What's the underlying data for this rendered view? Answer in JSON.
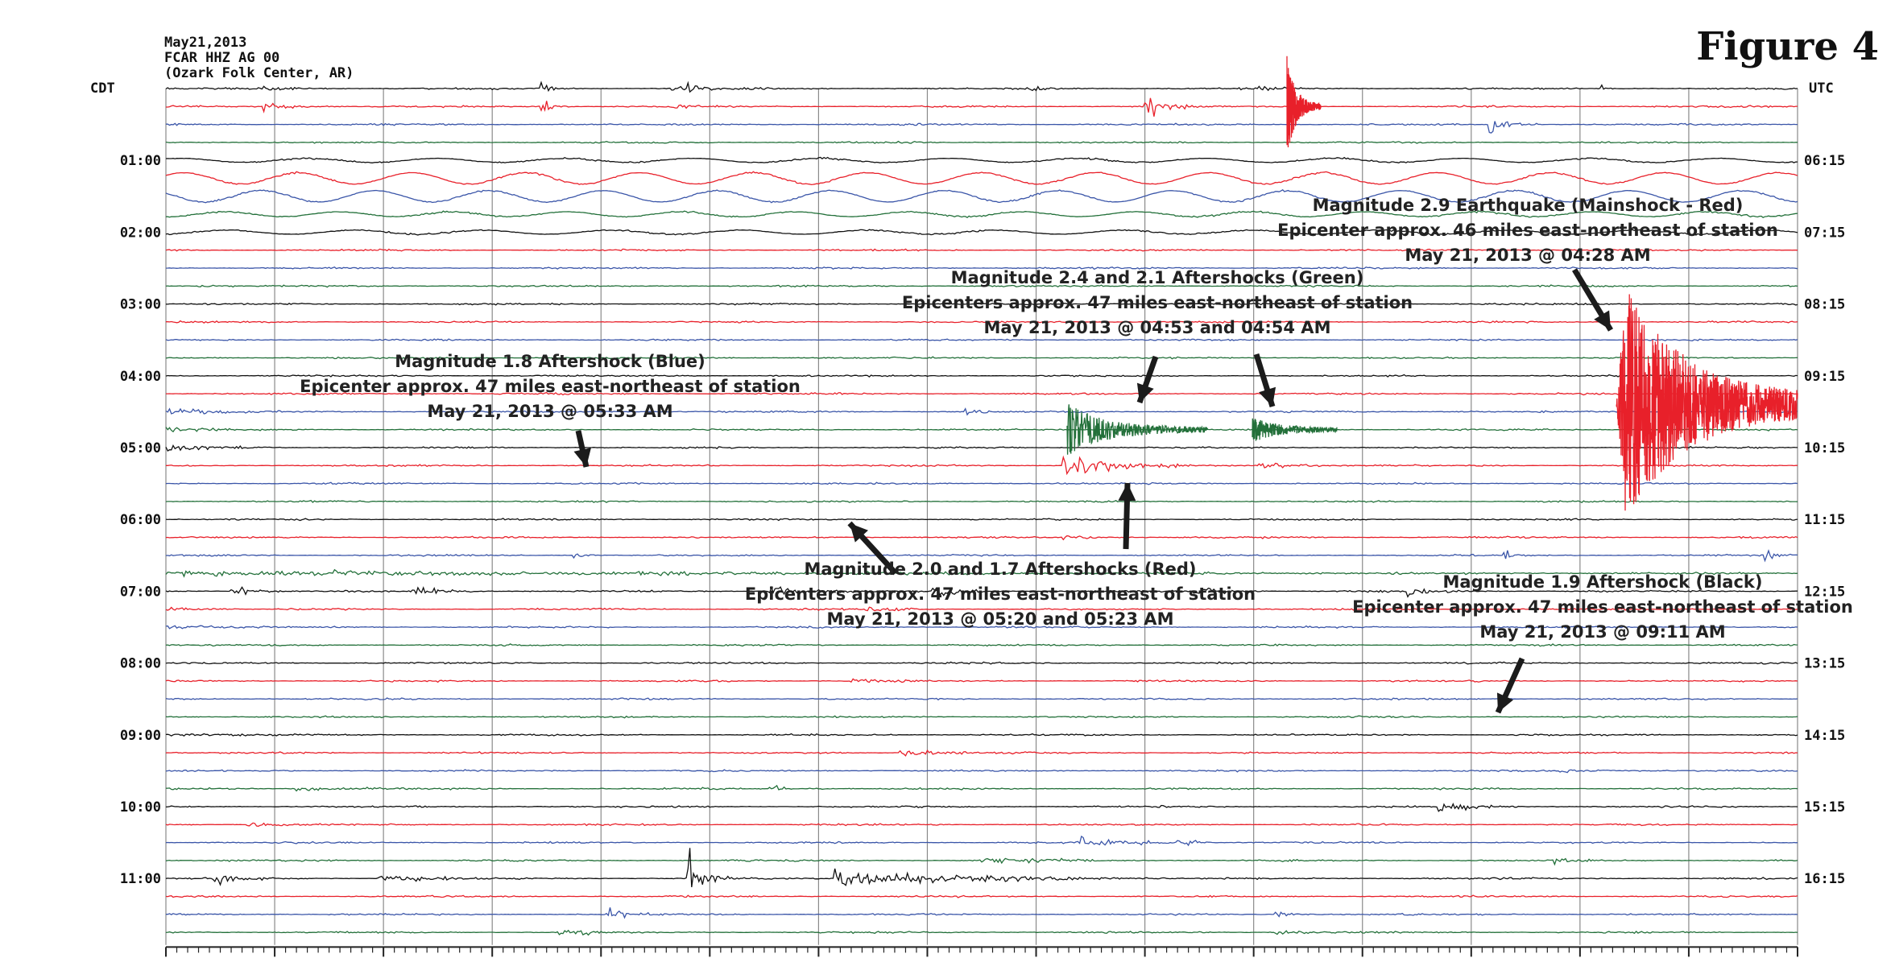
{
  "figure_title": "Figure 4",
  "header": {
    "date": "May21,2013",
    "station": "FCAR HHZ AG 00",
    "location": "(Ozark Folk Center, AR)"
  },
  "tz_left": "CDT",
  "tz_right": "UTC",
  "colors": {
    "black": "#111111",
    "red": "#e8202a",
    "blue": "#3a55a8",
    "green": "#23703a",
    "grid": "#8a8a8a"
  },
  "chart_data": {
    "type": "line",
    "description_kind": "helicorder seismogram",
    "trace_rows": 48,
    "minutes_per_row": 15,
    "color_cycle": [
      "black",
      "red",
      "blue",
      "green"
    ],
    "left_hour_labels": [
      "01:00",
      "02:00",
      "03:00",
      "04:00",
      "05:00",
      "06:00",
      "07:00",
      "08:00",
      "09:00",
      "10:00",
      "11:00"
    ],
    "right_hour_labels": [
      "06:15",
      "07:15",
      "08:15",
      "09:15",
      "10:15",
      "11:15",
      "12:15",
      "13:15",
      "14:15",
      "15:15",
      "16:15"
    ],
    "events": [
      {
        "magnitude": 2.9,
        "kind": "Mainshock",
        "trace_color": "red",
        "time": "04:28 AM",
        "distance_miles": 46
      },
      {
        "magnitude": 2.4,
        "kind": "Aftershock",
        "trace_color": "green",
        "time": "04:53 AM",
        "distance_miles": 47
      },
      {
        "magnitude": 2.1,
        "kind": "Aftershock",
        "trace_color": "green",
        "time": "04:54 AM",
        "distance_miles": 47
      },
      {
        "magnitude": 1.8,
        "kind": "Aftershock",
        "trace_color": "blue",
        "time": "05:33 AM",
        "distance_miles": 47
      },
      {
        "magnitude": 2.0,
        "kind": "Aftershock",
        "trace_color": "red",
        "time": "05:20 AM",
        "distance_miles": 47
      },
      {
        "magnitude": 1.7,
        "kind": "Aftershock",
        "trace_color": "red",
        "time": "05:23 AM",
        "distance_miles": 47
      },
      {
        "magnitude": 1.9,
        "kind": "Aftershock",
        "trace_color": "black",
        "time": "09:11 AM",
        "distance_miles": 47
      }
    ]
  },
  "annotations": [
    {
      "id": "mainshock",
      "lines": [
        "Magnitude 2.9 Earthquake (Mainshock - Red)",
        "Epicenter approx. 46 miles east-northeast of station",
        "May 21, 2013 @ 04:28 AM"
      ]
    },
    {
      "id": "green-aftershocks",
      "lines": [
        "Magnitude 2.4 and 2.1 Aftershocks (Green)",
        "Epicenters approx. 47 miles east-northeast of station",
        "May 21, 2013 @ 04:53 and 04:54 AM"
      ]
    },
    {
      "id": "blue-aftershock",
      "lines": [
        "Magnitude 1.8 Aftershock (Blue)",
        "Epicenter approx. 47 miles east-northeast of station",
        "May 21, 2013 @ 05:33 AM"
      ]
    },
    {
      "id": "red-aftershocks",
      "lines": [
        "Magnitude 2.0 and 1.7 Aftershocks (Red)",
        "Epicenters approx. 47 miles east-northeast of station",
        "May 21, 2013 @ 05:20 and 05:23 AM"
      ]
    },
    {
      "id": "black-aftershock",
      "lines": [
        "Magnitude 1.9 Aftershock (Black)",
        "Epicenter approx. 47 miles east-northeast of station",
        "May 21, 2013 @ 09:11 AM"
      ]
    }
  ]
}
